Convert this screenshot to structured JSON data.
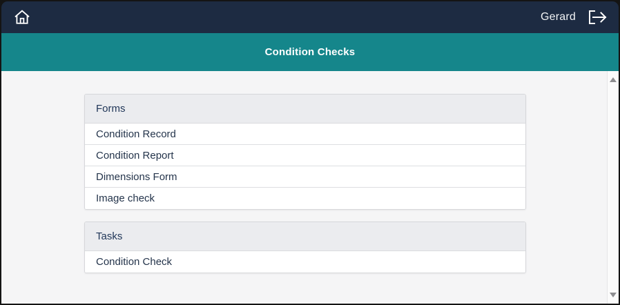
{
  "topbar": {
    "home_icon": "home-icon",
    "user_name": "Gerard",
    "logout_icon": "logout-icon"
  },
  "titlebar": {
    "title": "Condition Checks"
  },
  "sections": {
    "forms": {
      "header": "Forms",
      "items": [
        "Condition Record",
        "Condition Report",
        "Dimensions Form",
        "Image check"
      ]
    },
    "tasks": {
      "header": "Tasks",
      "items": [
        "Condition Check"
      ]
    }
  },
  "scrollbar": {
    "up_icon": "scroll-up-arrow",
    "down_icon": "scroll-down-arrow"
  },
  "colors": {
    "topbar_bg": "#1d2b42",
    "titlebar_bg": "#15868b",
    "content_bg": "#f5f5f6",
    "card_header_bg": "#ebecef",
    "card_border": "#d6d7da",
    "row_separator": "#dddee1",
    "text_navy": "#24344b",
    "frame": "#141414"
  }
}
